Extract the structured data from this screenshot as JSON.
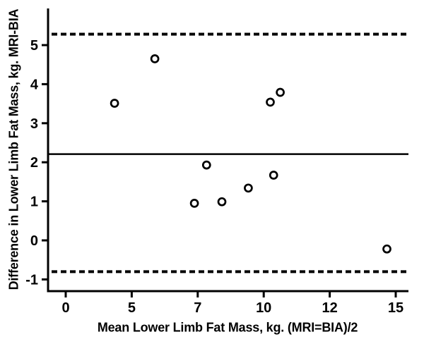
{
  "figure": {
    "background": "#ffffff",
    "ink_color": "#000000",
    "marker_fill": "#ffffff"
  },
  "chart_data": {
    "type": "scatter",
    "title": "",
    "xlabel": "Mean Lower Limb Fat Mass, kg. (MRI=BIA)/2",
    "ylabel": "Difference in Lower Limb Fat Mass, kg. MRI-BIA",
    "x_tick_labels": [
      "0",
      "5",
      "7",
      "10",
      "12",
      "15"
    ],
    "x_tick_values": [
      0,
      5,
      7,
      10,
      12,
      15
    ],
    "y_tick_labels": [
      "5",
      "4",
      "3",
      "2",
      "1",
      "0",
      "-1"
    ],
    "y_tick_values": [
      5,
      4,
      3,
      2,
      1,
      0,
      -1
    ],
    "xlim": [
      0,
      15
    ],
    "ylim": [
      -1.3,
      5.94
    ],
    "grid": false,
    "legend": null,
    "marker": "open-circle",
    "points": [
      {
        "x": 3.7,
        "y": 3.51
      },
      {
        "x": 5.7,
        "y": 4.65
      },
      {
        "x": 6.9,
        "y": 0.95
      },
      {
        "x": 7.4,
        "y": 1.93
      },
      {
        "x": 8.1,
        "y": 0.99
      },
      {
        "x": 9.3,
        "y": 1.34
      },
      {
        "x": 10.2,
        "y": 3.54
      },
      {
        "x": 10.3,
        "y": 1.67
      },
      {
        "x": 10.5,
        "y": 3.79
      },
      {
        "x": 14.6,
        "y": -0.22
      }
    ],
    "reference_lines": {
      "mean": {
        "value": 2.21,
        "style": "solid"
      },
      "upper_limit": {
        "value": 5.28,
        "style": "dashed"
      },
      "lower_limit": {
        "value": -0.8,
        "style": "dashed"
      }
    }
  }
}
